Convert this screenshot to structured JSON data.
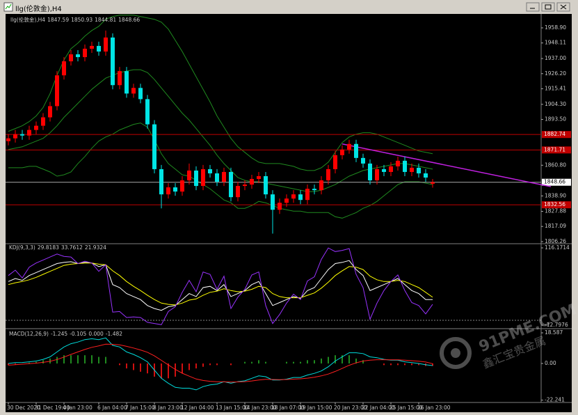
{
  "window_title": "llg(伦敦金),H4",
  "watermark": {
    "line1": "91PME.COM",
    "line2": "鑫汇宝贵金属"
  },
  "chart_data": [
    {
      "type": "candlestick",
      "label": "llg(伦敦金),H4",
      "up_color": "#ff0000",
      "down_color": "#00e5e5",
      "band_color": "#1f8a1f",
      "categories": [
        "30 Dec 2020",
        null,
        null,
        null,
        "31 Dec 19:00",
        null,
        null,
        null,
        "4 Jan 23:00",
        null,
        null,
        null,
        null,
        "6 Jan 04:00",
        null,
        null,
        null,
        "7 Jan 15:00",
        null,
        null,
        null,
        "8 Jan 23:00",
        null,
        null,
        null,
        "12 Jan 04:00",
        null,
        null,
        null,
        null,
        "13 Jan 15:00",
        null,
        null,
        null,
        "14 Jan 23:00",
        null,
        null,
        null,
        "18 Jan 07:00",
        null,
        null,
        null,
        "19 Jan 15:00",
        null,
        null,
        null,
        null,
        "20 Jan 23:00",
        null,
        null,
        null,
        "22 Jan 04:00",
        null,
        null,
        null,
        "25 Jan 15:00",
        null,
        null,
        null,
        "26 Jan 23:00",
        null,
        null
      ],
      "open": [
        1878,
        1880,
        1883,
        1882,
        1886,
        1889,
        1895,
        1903,
        1925,
        1935,
        1940,
        1938,
        1944,
        1946,
        1942,
        1952,
        1918,
        1928,
        1912,
        1916,
        1908,
        1890,
        1858,
        1840,
        1845,
        1842,
        1850,
        1857,
        1846,
        1858,
        1855,
        1849,
        1856,
        1838,
        1846,
        1847,
        1851,
        1853,
        1840,
        1829,
        1834,
        1837,
        1840,
        1836,
        1844,
        1843,
        1850,
        1858,
        1868,
        1872,
        1876,
        1866,
        1862,
        1850,
        1858,
        1856,
        1860,
        1864,
        1856,
        1859,
        1855,
        1847.59
      ],
      "high": [
        1883,
        1886,
        1886,
        1889,
        1892,
        1898,
        1906,
        1928,
        1938,
        1943,
        1943,
        1947,
        1949,
        1949,
        1957,
        1955,
        1931,
        1931,
        1919,
        1919,
        1911,
        1893,
        1861,
        1848,
        1848,
        1853,
        1862,
        1860,
        1861,
        1861,
        1858,
        1859,
        1859,
        1849,
        1850,
        1854,
        1856,
        1856,
        1843,
        1837,
        1840,
        1843,
        1843,
        1847,
        1847,
        1853,
        1861,
        1871,
        1875,
        1879,
        1879,
        1869,
        1865,
        1861,
        1861,
        1863,
        1867,
        1867,
        1862,
        1862,
        1858,
        1850.93
      ],
      "low": [
        1875,
        1877,
        1879,
        1879,
        1883,
        1886,
        1892,
        1900,
        1922,
        1932,
        1935,
        1935,
        1941,
        1939,
        1939,
        1915,
        1915,
        1909,
        1909,
        1905,
        1887,
        1855,
        1830,
        1837,
        1839,
        1839,
        1847,
        1843,
        1843,
        1852,
        1846,
        1846,
        1835,
        1835,
        1843,
        1844,
        1848,
        1837,
        1812,
        1826,
        1831,
        1834,
        1833,
        1833,
        1840,
        1840,
        1847,
        1855,
        1865,
        1869,
        1863,
        1859,
        1847,
        1847,
        1853,
        1853,
        1857,
        1853,
        1853,
        1852,
        1849,
        1844.81
      ],
      "close": [
        1880,
        1883,
        1882,
        1886,
        1889,
        1895,
        1903,
        1925,
        1935,
        1940,
        1938,
        1944,
        1946,
        1942,
        1952,
        1918,
        1928,
        1912,
        1916,
        1908,
        1890,
        1858,
        1840,
        1845,
        1842,
        1850,
        1857,
        1846,
        1858,
        1855,
        1849,
        1856,
        1838,
        1846,
        1847,
        1851,
        1853,
        1840,
        1829,
        1834,
        1837,
        1840,
        1836,
        1844,
        1843,
        1850,
        1858,
        1868,
        1872,
        1876,
        1866,
        1862,
        1850,
        1858,
        1856,
        1860,
        1864,
        1856,
        1859,
        1855,
        1852,
        1848.66
      ],
      "bands": {
        "upper": [
          1885,
          1887,
          1889,
          1892,
          1896,
          1902,
          1912,
          1925,
          1936,
          1944,
          1948,
          1953,
          1957,
          1960,
          1965,
          1967,
          1968,
          1968,
          1968,
          1967,
          1966,
          1965,
          1963,
          1958,
          1950,
          1942,
          1933,
          1924,
          1915,
          1906,
          1896,
          1888,
          1880,
          1874,
          1870,
          1866,
          1863,
          1862,
          1862,
          1862,
          1861,
          1860,
          1858,
          1857,
          1857,
          1859,
          1863,
          1870,
          1877,
          1881,
          1883,
          1884,
          1884,
          1883,
          1881,
          1879,
          1877,
          1875,
          1873,
          1871,
          1870,
          1869
        ],
        "middle": [
          1872,
          1873,
          1874,
          1876,
          1878,
          1880,
          1884,
          1889,
          1895,
          1900,
          1905,
          1910,
          1915,
          1919,
          1923,
          1925,
          1927,
          1928,
          1929,
          1929,
          1927,
          1922,
          1916,
          1910,
          1904,
          1898,
          1893,
          1887,
          1881,
          1875,
          1868,
          1862,
          1857,
          1852,
          1850,
          1849,
          1849,
          1848,
          1847,
          1846,
          1845,
          1844,
          1843,
          1842,
          1842,
          1843,
          1845,
          1847,
          1850,
          1853,
          1855,
          1857,
          1858,
          1859,
          1860,
          1861,
          1862,
          1862,
          1861,
          1860,
          1859,
          1858
        ],
        "lower": [
          1859,
          1859,
          1859,
          1860,
          1860,
          1858,
          1856,
          1853,
          1854,
          1856,
          1862,
          1867,
          1873,
          1878,
          1881,
          1883,
          1886,
          1888,
          1890,
          1891,
          1888,
          1879,
          1869,
          1862,
          1858,
          1854,
          1853,
          1850,
          1847,
          1844,
          1840,
          1836,
          1834,
          1830,
          1830,
          1832,
          1835,
          1834,
          1832,
          1830,
          1829,
          1828,
          1828,
          1827,
          1827,
          1827,
          1827,
          1824,
          1823,
          1825,
          1827,
          1830,
          1832,
          1835,
          1839,
          1843,
          1847,
          1849,
          1849,
          1849,
          1848,
          1847
        ]
      },
      "hlines": {
        "color": "#c00000",
        "values": [
          1882.74,
          1871.71,
          1832.56
        ]
      },
      "trendline": {
        "color": "#c020e0",
        "x": [
          48,
          78
        ],
        "y": [
          1876,
          1845.5
        ]
      },
      "ylim": [
        1805.76,
        1967.85
      ],
      "yticks": [
        {
          "value": 1958.9,
          "label": "1958.90"
        },
        1948.11,
        {
          "value": 1937,
          "label": "1937.00"
        },
        {
          "value": 1926.2,
          "label": "1926.20"
        },
        1915.41,
        {
          "value": 1904.3,
          "label": "1904.30"
        },
        {
          "value": 1893.5,
          "label": "1893.50"
        },
        {
          "value": 1860.8,
          "label": "1860.80"
        },
        {
          "value": 1838.9,
          "label": "1838.90"
        },
        1827.88,
        1817.09,
        1806.26
      ]
    },
    {
      "type": "line",
      "label": "KDJ(9,3,3)",
      "ylim": [
        -16.28,
        120.82
      ],
      "yticks": [
        116.1714,
        -12.7976
      ],
      "series": [
        {
          "color": "#ffffff",
          "values": [
            60,
            65,
            62,
            70,
            75,
            80,
            85,
            90,
            92,
            93,
            90,
            92,
            91,
            85,
            88,
            55,
            50,
            40,
            35,
            30,
            20,
            15,
            12,
            18,
            20,
            30,
            40,
            35,
            50,
            52,
            45,
            55,
            35,
            40,
            45,
            55,
            60,
            40,
            20,
            25,
            30,
            35,
            32,
            45,
            50,
            65,
            80,
            90,
            92,
            95,
            80,
            70,
            45,
            50,
            55,
            60,
            65,
            55,
            45,
            40,
            30,
            29.8183
          ]
        },
        {
          "color": "#ffff00",
          "values": [
            55,
            58,
            60,
            63,
            67,
            72,
            77,
            82,
            87,
            89,
            90,
            91,
            91,
            89,
            88,
            78,
            70,
            60,
            52,
            45,
            37,
            30,
            24,
            22,
            21,
            24,
            29,
            31,
            37,
            42,
            44,
            48,
            45,
            43,
            44,
            47,
            52,
            50,
            40,
            35,
            33,
            33,
            33,
            37,
            41,
            49,
            59,
            70,
            78,
            85,
            84,
            80,
            69,
            63,
            60,
            60,
            62,
            60,
            55,
            50,
            42,
            33.7612
          ]
        },
        {
          "color": "#9933ff",
          "values": [
            70,
            79,
            66,
            84,
            91,
            96,
            101,
            106,
            102,
            101,
            90,
            94,
            91,
            77,
            88,
            9,
            10,
            0,
            1,
            0,
            -8,
            -10,
            -12,
            10,
            18,
            42,
            62,
            43,
            76,
            72,
            47,
            69,
            15,
            34,
            47,
            71,
            76,
            20,
            -10,
            5,
            24,
            39,
            30,
            61,
            68,
            97,
            116,
            110,
            112,
            115,
            72,
            50,
            -3,
            24,
            45,
            60,
            71,
            45,
            25,
            20,
            6,
            21.9324
          ]
        }
      ]
    },
    {
      "type": "macd",
      "label": "MACD(12,26,9)",
      "extra": {
        "value": 0,
        "label": "0.000"
      },
      "pos_color": "#1f8a1f",
      "neg_color": "#d01010",
      "ylim": [
        -23.65,
        20.28
      ],
      "yticks": [
        18.587,
        {
          "value": 0,
          "label": "0.00"
        },
        -22.241
      ],
      "macd": {
        "color": "#00dddd",
        "values": [
          0,
          0.5,
          0.6,
          1,
          1.5,
          2.5,
          4,
          7,
          10,
          12,
          13,
          14.5,
          15,
          14.5,
          15.5,
          11,
          10,
          7,
          5.5,
          3.5,
          1,
          -4,
          -9,
          -12,
          -14.5,
          -15,
          -15,
          -16,
          -14,
          -13,
          -12.5,
          -11,
          -12,
          -11,
          -10.5,
          -9,
          -7.5,
          -8,
          -10,
          -10,
          -9.5,
          -8.5,
          -8.5,
          -7,
          -6,
          -4.5,
          -2,
          1.5,
          4,
          6.5,
          6.5,
          6,
          4,
          3.5,
          2.5,
          2,
          2,
          1,
          0.5,
          0,
          -0.8,
          -1.245
        ]
      },
      "signal": {
        "color": "#ff2020",
        "values": [
          -1,
          -0.7,
          -0.4,
          -0.1,
          0.2,
          0.7,
          1.3,
          2.4,
          3.9,
          5.5,
          7,
          8.5,
          9.8,
          10.7,
          11.7,
          11.6,
          11.3,
          10.4,
          9.4,
          8.2,
          6.8,
          4.6,
          1.9,
          -0.9,
          -3.6,
          -5.9,
          -7.7,
          -9.4,
          -10.3,
          -10.8,
          -11.1,
          -11.1,
          -11.3,
          -11.2,
          -11,
          -10.6,
          -10,
          -9.6,
          -9.7,
          -9.8,
          -9.7,
          -9.5,
          -9.3,
          -8.9,
          -8.3,
          -7.5,
          -6.4,
          -4.8,
          -3,
          -1.1,
          0.4,
          1.5,
          2,
          2.3,
          2.3,
          2.2,
          2.2,
          2,
          1.7,
          1.4,
          0.9,
          -0.105
        ]
      },
      "histogram": [
        -1,
        -0.5,
        0,
        0.5,
        1,
        2,
        3,
        4,
        5,
        5,
        5,
        5,
        5,
        4,
        4,
        0,
        -1,
        -3,
        -4,
        -5,
        -6,
        -8,
        -9,
        -9,
        -8,
        -6,
        -4,
        -3,
        -2,
        -1,
        -1,
        0,
        -1,
        0,
        1,
        1,
        2,
        1,
        0,
        0,
        1,
        1,
        1,
        2,
        2,
        3,
        4,
        5,
        5,
        5,
        3,
        2,
        0,
        0,
        -1,
        -1,
        -1,
        -1,
        -1,
        -1,
        -1.5,
        -1.482
      ]
    }
  ]
}
